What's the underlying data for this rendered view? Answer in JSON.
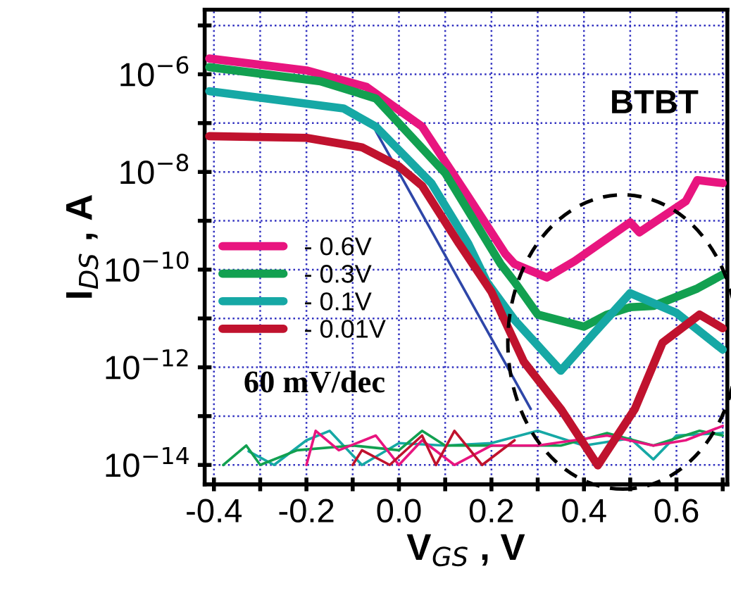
{
  "chart_data": {
    "type": "line",
    "xlabel": "V$_{GS}$ , V",
    "ylabel": "I$_{DS}$ , A",
    "log": "y",
    "grid": true,
    "legend": "center left",
    "marker": "none",
    "line_style": "solid",
    "xlim": [
      -0.42,
      0.71
    ],
    "ylim": [
      4e-15,
      2.1e-05
    ],
    "xticks": [
      -0.4,
      {
        "value": -0.3,
        "label": null
      },
      -0.2,
      {
        "value": -0.1,
        "label": null
      },
      {
        "value": 0.0,
        "label": "0.0"
      },
      {
        "value": 0.1,
        "label": null
      },
      0.2,
      {
        "value": 0.3,
        "label": null
      },
      0.4,
      {
        "value": 0.5,
        "label": null
      },
      0.6,
      {
        "value": 0.7,
        "label": null
      }
    ],
    "yticks": [
      {
        "value": 1e-14,
        "label": "10$^{−14}$"
      },
      {
        "value": 1e-13,
        "label": null
      },
      {
        "value": 1e-12,
        "label": "10$^{−12}$"
      },
      {
        "value": 1e-11,
        "label": null
      },
      {
        "value": 1e-10,
        "label": "10$^{−10}$"
      },
      {
        "value": 1e-09,
        "label": null
      },
      {
        "value": 1e-08,
        "label": "10$^{−8}$"
      },
      {
        "value": 1e-07,
        "label": null
      },
      {
        "value": 1e-06,
        "label": "10$^{−6}$"
      },
      {
        "value": 1e-05,
        "label": null
      }
    ],
    "annotations": [
      "BTBT",
      "60 mV/dec"
    ],
    "series": [
      {
        "name": "- 0.6V",
        "color": "#e8157f",
        "x": [
          -0.41,
          -0.2,
          -0.07,
          0.05,
          0.15,
          0.23,
          0.25,
          0.32,
          0.38,
          0.5,
          0.52,
          0.62,
          0.645,
          0.7
        ],
        "values": [
          2.1e-06,
          1.2e-06,
          5.5e-07,
          8.5e-08,
          3.1e-09,
          2.1e-10,
          1.3e-10,
          6.9e-11,
          1.5e-10,
          9.3e-10,
          5.8e-10,
          2.5e-09,
          6.8e-09,
          5.9e-09
        ]
      },
      {
        "name": "- 0.3V",
        "color": "#12a050",
        "x": [
          -0.41,
          -0.17,
          -0.05,
          0.1,
          0.22,
          0.25,
          0.3,
          0.4,
          0.45,
          0.5,
          0.55,
          0.645,
          0.7
        ],
        "values": [
          1.4e-06,
          7.2e-07,
          3.2e-07,
          9.5e-09,
          1.3e-10,
          5.6e-11,
          1.2e-11,
          6.8e-12,
          1.2e-11,
          1.7e-11,
          1.8e-11,
          4.1e-11,
          7.9e-11
        ]
      },
      {
        "name": "- 0.1V",
        "color": "#16a8a5",
        "x": [
          -0.41,
          -0.12,
          -0.05,
          0.07,
          0.15,
          0.19,
          0.25,
          0.35,
          0.42,
          0.5,
          0.6,
          0.7
        ],
        "values": [
          4.5e-07,
          2e-07,
          8.5e-08,
          5.9e-09,
          3.4e-10,
          5.6e-11,
          9.3e-12,
          8.5e-13,
          4.8e-12,
          3.3e-11,
          1.3e-11,
          2.3e-12
        ]
      },
      {
        "name": "- 0.01V",
        "color": "#c0122e",
        "x": [
          -0.41,
          -0.2,
          -0.08,
          0.0,
          0.05,
          0.13,
          0.2,
          0.27,
          0.35,
          0.43,
          0.51,
          0.57,
          0.65,
          0.7
        ],
        "values": [
          5.4e-08,
          5e-08,
          3.2e-08,
          1.3e-08,
          5.2e-09,
          3.4e-10,
          3.5e-11,
          1.3e-12,
          1.4e-13,
          9.8e-15,
          1.4e-13,
          3.2e-12,
          1.2e-11,
          6.3e-12
        ]
      },
      {
        "color": "#2e46a8",
        "x": [
          -0.05,
          0.285
        ],
        "values": [
          6.9e-08,
          1.4e-13
        ]
      },
      {
        "color": "#16a8a5",
        "x": [
          -0.325,
          -0.27,
          -0.2,
          -0.15,
          -0.12,
          -0.08,
          0.0,
          0.1,
          0.2,
          0.3,
          0.4,
          0.5,
          0.55,
          0.6,
          0.7
        ],
        "values": [
          1.9e-14,
          1e-14,
          3.2e-14,
          5e-14,
          2.5e-14,
          1e-14,
          2.8e-14,
          2.5e-14,
          2.8e-14,
          5e-14,
          2.5e-14,
          3.5e-14,
          1.3e-14,
          4e-14,
          4.5e-14
        ]
      },
      {
        "color": "#12a050",
        "x": [
          -0.38,
          -0.33,
          -0.3,
          -0.22,
          -0.1,
          0.0,
          0.05,
          0.1,
          0.2,
          0.35,
          0.45,
          0.55,
          0.65,
          0.7
        ],
        "values": [
          1e-14,
          2.5e-14,
          1e-14,
          2e-14,
          2.5e-14,
          2e-14,
          5e-14,
          2.5e-14,
          2.5e-14,
          2.5e-14,
          4.5e-14,
          2.5e-14,
          5e-14,
          4e-14
        ]
      },
      {
        "color": "#e8157f",
        "x": [
          -0.2,
          -0.18,
          -0.13,
          -0.05,
          0.0,
          0.05,
          0.12,
          0.2,
          0.3,
          0.45,
          0.55,
          0.62,
          0.7
        ],
        "values": [
          1e-14,
          5e-14,
          2e-14,
          4e-14,
          1e-14,
          3.2e-14,
          1e-14,
          2.5e-14,
          2.5e-14,
          4e-14,
          2.5e-14,
          3.2e-14,
          6.3e-14
        ]
      },
      {
        "color": "#c0122e",
        "x": [
          -0.1,
          -0.08,
          -0.02,
          0.05,
          0.08,
          0.12,
          0.18,
          0.25
        ],
        "values": [
          1e-14,
          2e-14,
          1e-14,
          4e-14,
          1e-14,
          5e-14,
          1e-14,
          3.2e-14
        ]
      }
    ]
  }
}
